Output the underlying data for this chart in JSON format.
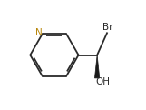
{
  "bg_color": "#ffffff",
  "bond_color": "#2a2a2a",
  "n_color": "#b8860b",
  "label_color": "#2a2a2a",
  "br_label": "Br",
  "oh_label": "OH",
  "n_label": "N",
  "figsize": [
    1.61,
    1.21
  ],
  "dpi": 100,
  "font_size_label": 7.5,
  "wedge_color": "#1a1a1a",
  "lw": 1.3
}
